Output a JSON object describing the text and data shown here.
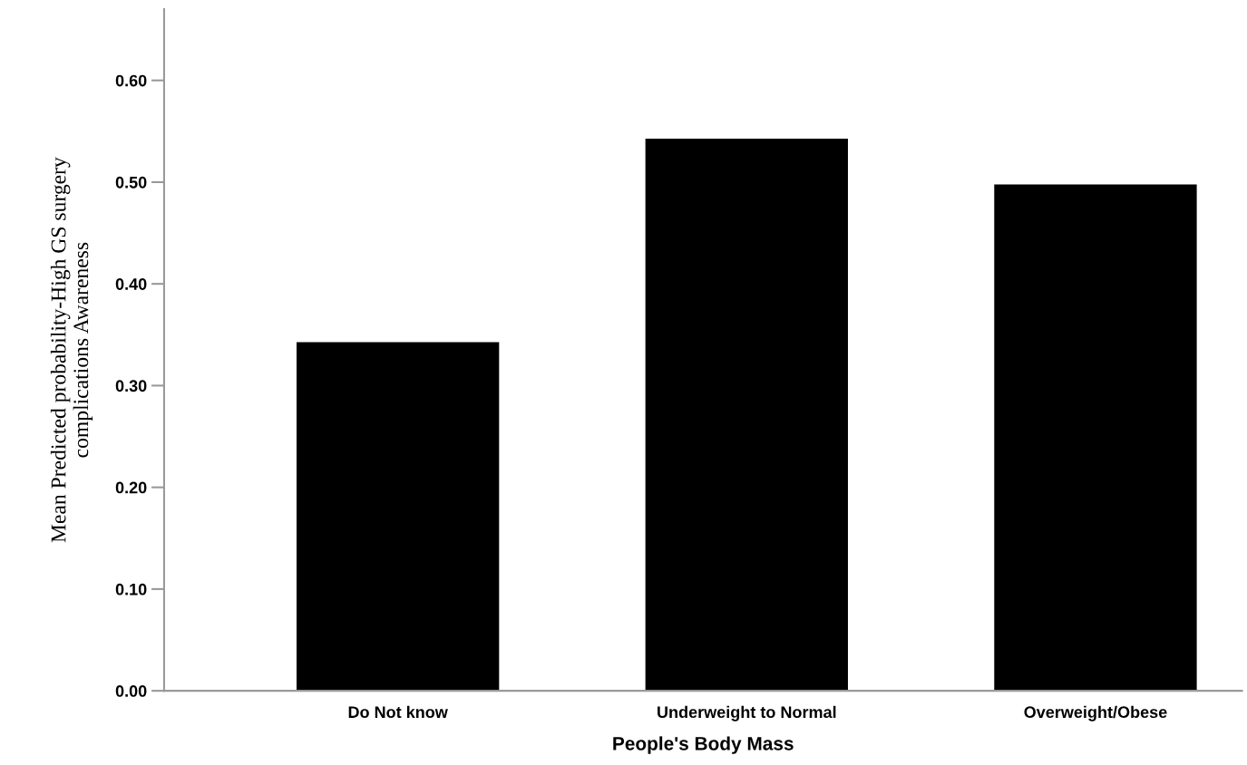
{
  "chart_data": {
    "type": "bar",
    "xlabel": "People's Body Mass",
    "ylabel": "Mean Predicted probability-High GS surgery\ncomplications Awareness",
    "categories": [
      "Do Not know",
      "Underweight to Normal",
      "Overweight/Obese"
    ],
    "values": [
      0.342,
      0.542,
      0.497
    ],
    "color": "#000000",
    "ylim": [
      0,
      0.67
    ],
    "yticks": [
      {
        "value": 0,
        "label": "0.00"
      },
      {
        "value": 0.1,
        "label": "0.10"
      },
      {
        "value": 0.2,
        "label": "0.20"
      },
      {
        "value": 0.3,
        "label": "0.30"
      },
      {
        "value": 0.4,
        "label": "0.40"
      },
      {
        "value": 0.5,
        "label": "0.50"
      },
      {
        "value": 0.6,
        "label": "0.60"
      }
    ],
    "grid": false,
    "legend": false
  }
}
